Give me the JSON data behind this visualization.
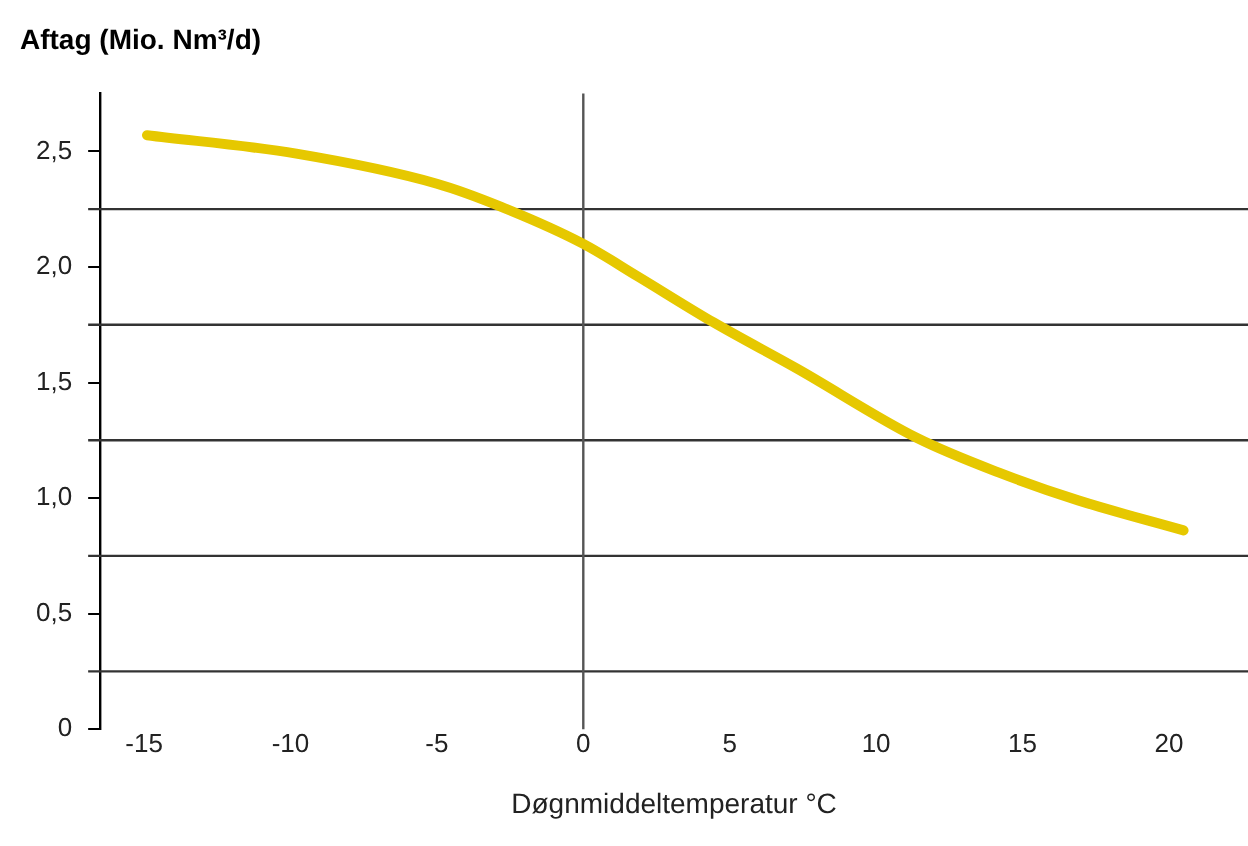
{
  "chart_data": {
    "type": "line",
    "ylabel": "Aftag (Mio. Nm³/d)",
    "xlabel": "Døgnmiddeltemperatur °C",
    "xlim": [
      -16.5,
      22.7
    ],
    "xticks": [
      -15,
      -10,
      -5,
      0,
      5,
      10,
      15,
      20
    ],
    "ylim": [
      0,
      2.75
    ],
    "yticks": [
      0,
      {
        "value": 0.5,
        "label": "0,5"
      },
      {
        "value": 1,
        "label": "1,0"
      },
      {
        "value": 1.5,
        "label": "1,5"
      },
      {
        "value": 2,
        "label": "2,0"
      },
      {
        "value": 2.5,
        "label": "2,5"
      }
    ],
    "grid": false,
    "legend": false,
    "marker": "none",
    "line_style": "solid",
    "series": [
      {
        "color": "#e6c800",
        "x": [
          -14.9,
          -9.8,
          -5,
          -2.8,
          0,
          1.85,
          4.45,
          7.3,
          11.4,
          14.2,
          16.9,
          20.5
        ],
        "values": [
          2.57,
          2.49,
          2.36,
          2.26,
          2.1,
          1.96,
          1.76,
          1.56,
          1.26,
          1.11,
          0.99,
          0.86
        ]
      }
    ],
    "ref_lines": [
      {
        "axis": "y",
        "value": 0.25,
        "color": "#333333"
      },
      {
        "axis": "y",
        "value": 0.75,
        "color": "#333333"
      },
      {
        "axis": "y",
        "value": 1.25,
        "color": "#333333"
      },
      {
        "axis": "y",
        "value": 1.75,
        "color": "#333333"
      },
      {
        "axis": "y",
        "value": 2.25,
        "color": "#333333"
      },
      {
        "axis": "x",
        "value": 0,
        "color": "#555555"
      }
    ]
  }
}
